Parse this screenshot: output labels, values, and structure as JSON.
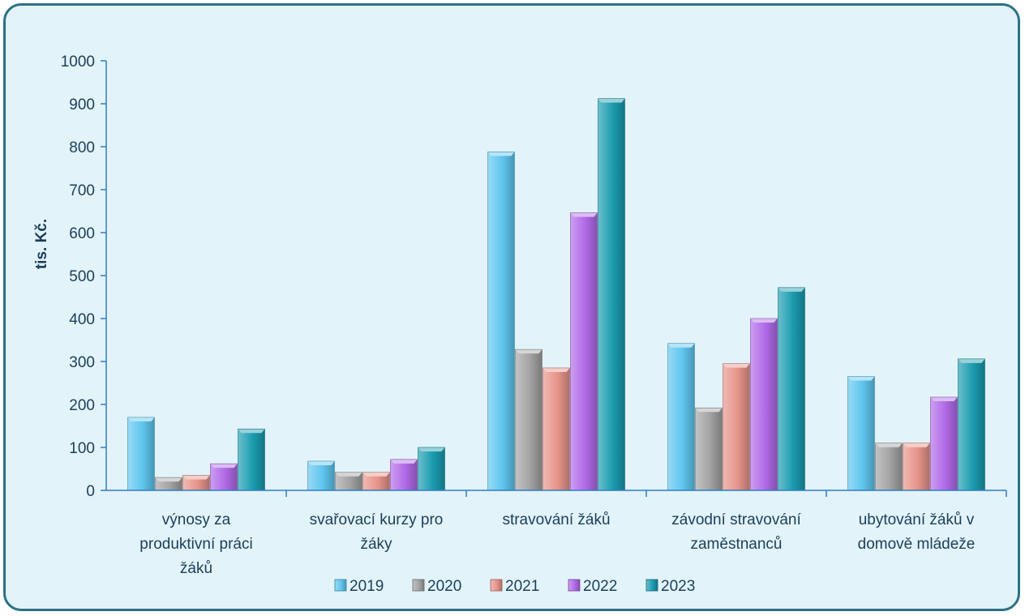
{
  "chart_data": {
    "type": "bar",
    "title": "",
    "xlabel": "",
    "ylabel": "tis. Kč.",
    "ylim": [
      0,
      1000
    ],
    "yticks": [
      0,
      100,
      200,
      300,
      400,
      500,
      600,
      700,
      800,
      900,
      1000
    ],
    "grid": false,
    "legend_position": "bottom",
    "categories": [
      [
        "výnosy za",
        "produktivní práci",
        "žáků"
      ],
      [
        "svařovací kurzy pro",
        "žáky"
      ],
      [
        "stravování žáků"
      ],
      [
        "závodní stravování",
        "zaměstnanců"
      ],
      [
        "ubytování žáků v",
        "domově mládeže"
      ]
    ],
    "series": [
      {
        "name": "2019",
        "color": "#5fc6ef",
        "values": [
          170,
          68,
          788,
          342,
          265
        ]
      },
      {
        "name": "2020",
        "color": "#a3a3a3",
        "values": [
          30,
          42,
          328,
          192,
          110
        ]
      },
      {
        "name": "2021",
        "color": "#e7948a",
        "values": [
          35,
          42,
          285,
          295,
          110
        ]
      },
      {
        "name": "2022",
        "color": "#b06ae8",
        "values": [
          62,
          72,
          646,
          400,
          217
        ]
      },
      {
        "name": "2023",
        "color": "#1b9cb0",
        "values": [
          143,
          100,
          912,
          472,
          306
        ]
      }
    ]
  }
}
